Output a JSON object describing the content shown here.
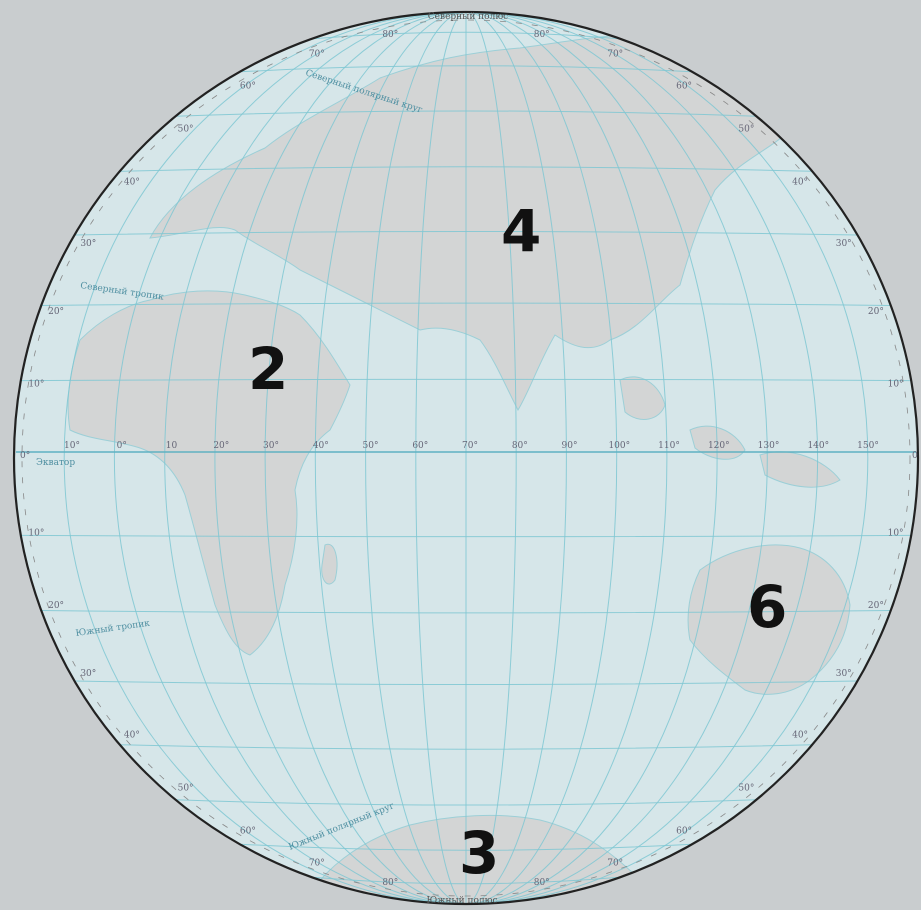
{
  "map": {
    "pole_north_label": "Северный полюс",
    "pole_south_label": "Южный полюс",
    "lines": {
      "arctic_circle": "Северный полярный круг",
      "tropic_north": "Северный тропик",
      "equator": "Экватор",
      "tropic_south": "Южный тропик",
      "antarctic_circle": "Южный полярный круг"
    },
    "equator_longitudes": [
      "10°",
      "0°",
      "10",
      "20°",
      "30°",
      "40°",
      "50°",
      "60°",
      "70°",
      "80°",
      "90°",
      "100°",
      "110°",
      "120°",
      "130°",
      "140°",
      "150°"
    ],
    "edge_left_label": "0°",
    "edge_right_label": "0",
    "left_latitudes": [
      "80°",
      "70°",
      "60°",
      "50°",
      "40°",
      "30°",
      "20°",
      "10°",
      "10°",
      "20°",
      "30°",
      "40°",
      "50°",
      "60°",
      "70°",
      "80°"
    ],
    "right_latitudes": [
      "80°",
      "70°",
      "60°",
      "50°",
      "40°",
      "30°",
      "20°",
      "10°",
      "10°",
      "20°",
      "30°",
      "40°",
      "50°",
      "60°",
      "70°",
      "80°"
    ],
    "region_numbers": {
      "africa": "2",
      "eurasia": "4",
      "australia": "6",
      "antarctica": "3"
    }
  }
}
